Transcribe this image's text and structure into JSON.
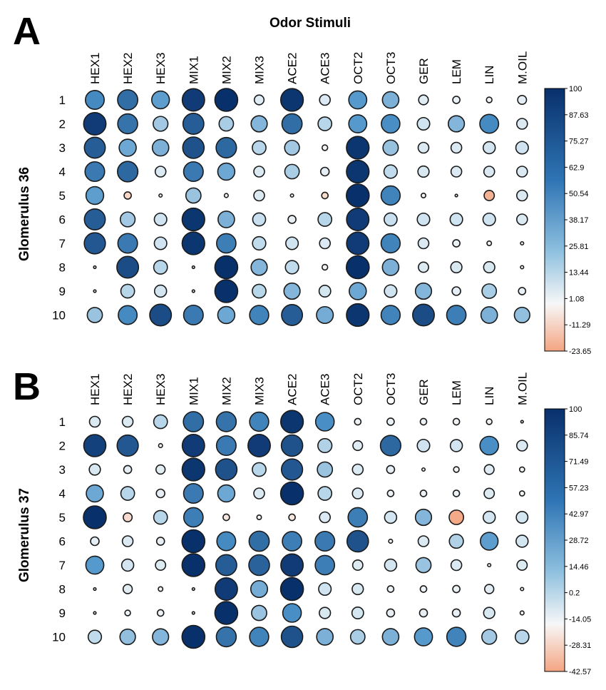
{
  "figure": {
    "title": "Odor Stimuli",
    "colors": {
      "high": "#08306b",
      "mid_blue": "#4b92c9",
      "light_blue": "#cfe4f0",
      "neutral": "#f7f7f7",
      "low": "#f4a582"
    }
  },
  "chart_data": [
    {
      "type": "heatmap",
      "panel": "A",
      "ylabel": "Glomerulus 36",
      "columns": [
        "HEX1",
        "HEX2",
        "HEX3",
        "MIX1",
        "MIX2",
        "MIX3",
        "ACE2",
        "ACE3",
        "OCT2",
        "OCT3",
        "GER",
        "LEM",
        "LIN",
        "M.OIL"
      ],
      "rows": [
        "1",
        "2",
        "3",
        "4",
        "5",
        "6",
        "7",
        "8",
        "9",
        "10"
      ],
      "values": [
        [
          68,
          78,
          60,
          96,
          100,
          18,
          98,
          22,
          62,
          52,
          18,
          10,
          6,
          15
        ],
        [
          96,
          76,
          42,
          84,
          40,
          50,
          78,
          36,
          62,
          66,
          30,
          50,
          68,
          22
        ],
        [
          84,
          56,
          52,
          88,
          80,
          36,
          42,
          6,
          98,
          45,
          22,
          22,
          28,
          30
        ],
        [
          74,
          80,
          22,
          74,
          56,
          22,
          40,
          14,
          98,
          34,
          24,
          22,
          22,
          22
        ],
        [
          60,
          -10,
          2,
          44,
          3,
          22,
          2,
          -8,
          100,
          70,
          4,
          1,
          -20,
          22
        ],
        [
          84,
          42,
          30,
          98,
          52,
          32,
          12,
          36,
          96,
          32,
          30,
          30,
          30,
          22
        ],
        [
          86,
          74,
          30,
          98,
          72,
          34,
          30,
          22,
          96,
          70,
          22,
          10,
          4,
          2
        ],
        [
          1,
          90,
          36,
          1,
          100,
          50,
          34,
          6,
          100,
          52,
          20,
          24,
          24,
          2
        ],
        [
          1,
          36,
          28,
          1,
          100,
          36,
          50,
          26,
          56,
          30,
          50,
          14,
          40,
          10
        ],
        [
          44,
          68,
          90,
          74,
          56,
          70,
          84,
          54,
          98,
          70,
          90,
          72,
          52,
          46
        ]
      ],
      "legend": {
        "ticks": [
          "100",
          "87.63",
          "75.27",
          "62.9",
          "50.54",
          "38.17",
          "25.81",
          "13.44",
          "1.08",
          "-11.29",
          "-23.65"
        ],
        "range": [
          -23.65,
          100
        ]
      }
    },
    {
      "type": "heatmap",
      "panel": "B",
      "ylabel": "Glomerulus 37",
      "columns": [
        "HEX1",
        "HEX2",
        "HEX3",
        "MIX1",
        "MIX2",
        "MIX3",
        "ACE2",
        "ACE3",
        "OCT2",
        "OCT3",
        "GER",
        "LEM",
        "LIN",
        "M.OIL"
      ],
      "rows": [
        "1",
        "2",
        "3",
        "4",
        "5",
        "6",
        "7",
        "8",
        "9",
        "10"
      ],
      "values": [
        [
          22,
          22,
          36,
          78,
          76,
          70,
          98,
          66,
          8,
          10,
          8,
          8,
          6,
          1
        ],
        [
          94,
          86,
          3,
          96,
          74,
          96,
          88,
          38,
          18,
          80,
          30,
          28,
          66,
          22
        ],
        [
          24,
          12,
          16,
          98,
          88,
          36,
          86,
          44,
          22,
          12,
          2,
          6,
          18,
          5
        ],
        [
          56,
          36,
          14,
          74,
          56,
          22,
          100,
          36,
          22,
          8,
          8,
          8,
          20,
          5
        ],
        [
          100,
          -15,
          36,
          72,
          -8,
          4,
          -8,
          22,
          72,
          28,
          50,
          -40,
          28,
          26
        ],
        [
          14,
          22,
          12,
          100,
          68,
          78,
          72,
          74,
          88,
          3,
          22,
          38,
          60,
          28
        ],
        [
          62,
          28,
          20,
          100,
          84,
          82,
          96,
          72,
          20,
          28,
          44,
          22,
          2,
          20
        ],
        [
          1,
          16,
          4,
          1,
          96,
          54,
          100,
          30,
          24,
          8,
          8,
          10,
          16,
          2
        ],
        [
          1,
          6,
          8,
          1,
          100,
          44,
          66,
          24,
          26,
          12,
          12,
          12,
          24,
          3
        ],
        [
          34,
          46,
          50,
          100,
          76,
          70,
          88,
          52,
          40,
          52,
          62,
          70,
          42,
          36
        ]
      ],
      "legend": {
        "ticks": [
          "100",
          "85.74",
          "71.49",
          "57.23",
          "42.97",
          "28.72",
          "14.46",
          "0.2",
          "-14.05",
          "-28.31",
          "-42.57"
        ],
        "range": [
          -42.57,
          100
        ]
      }
    }
  ]
}
